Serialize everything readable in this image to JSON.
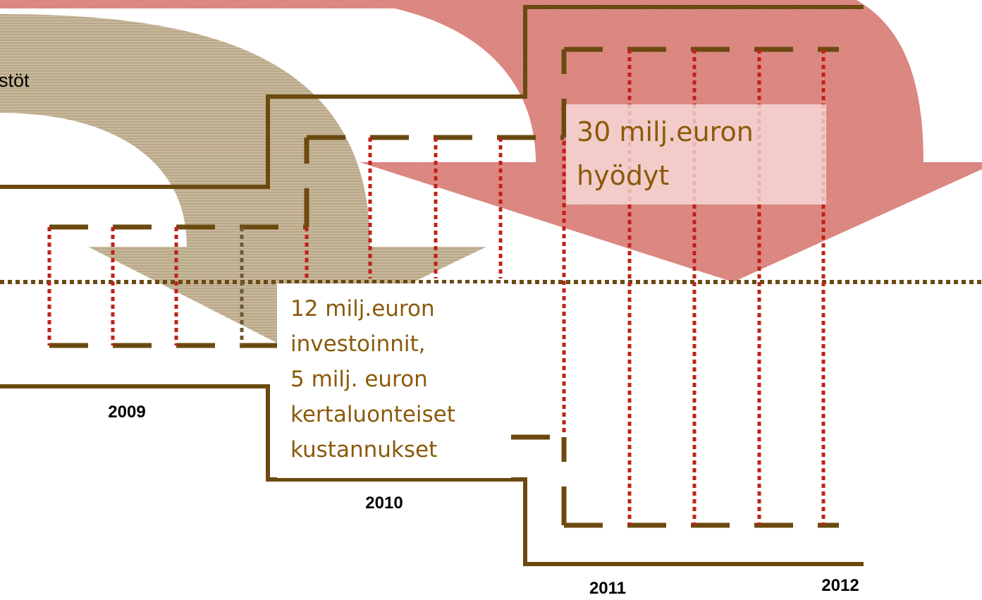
{
  "labels": {
    "top_left": "stöt",
    "benefits": [
      "30 milj.euron",
      "hyödyt"
    ],
    "investments": [
      "12 milj.euron",
      "investoinnit,",
      "5 milj. euron",
      "kertaluonteiset",
      "kustannukset"
    ],
    "years": [
      "2009",
      "2010",
      "2011",
      "2012"
    ]
  }
}
